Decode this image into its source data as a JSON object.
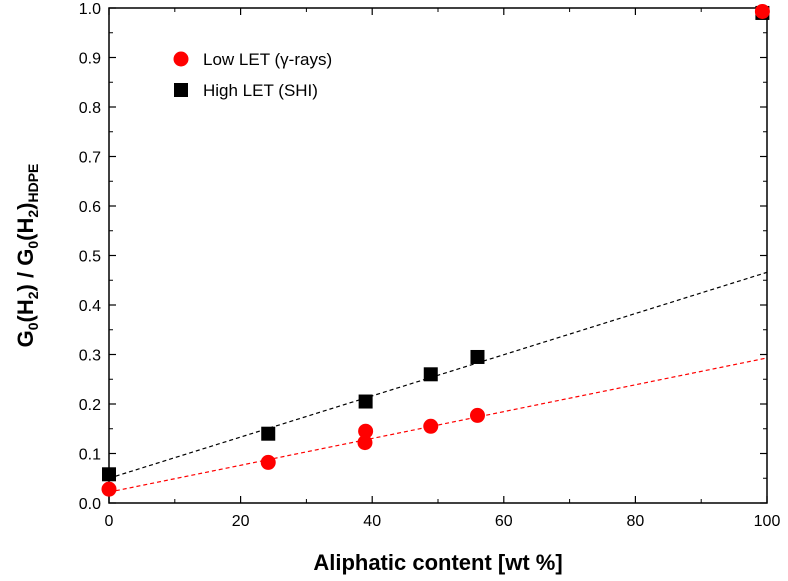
{
  "chart_data": {
    "type": "scatter",
    "xlabel": "Aliphatic content [wt %]",
    "ylabel": {
      "parts": [
        "G",
        "0",
        "(H",
        "2",
        ") / G",
        "0",
        "(H",
        "2",
        ")",
        "HDPE"
      ],
      "sub": [
        false,
        true,
        false,
        true,
        false,
        true,
        false,
        true,
        false,
        true
      ]
    },
    "xlim": [
      0,
      100
    ],
    "ylim": [
      0.0,
      1.0
    ],
    "xticks": [
      "0",
      "20",
      "40",
      "60",
      "80",
      "100"
    ],
    "xtick_values": [
      0,
      20,
      40,
      60,
      80,
      100
    ],
    "yticks": [
      "0.0",
      "0.1",
      "0.2",
      "0.3",
      "0.4",
      "0.5",
      "0.6",
      "0.7",
      "0.8",
      "0.9",
      "1.0"
    ],
    "ytick_values": [
      0.0,
      0.1,
      0.2,
      0.3,
      0.4,
      0.5,
      0.6,
      0.7,
      0.8,
      0.9,
      1.0
    ],
    "grid": false,
    "legend_position": "top-left",
    "series": [
      {
        "name": "Low LET (γ-rays)",
        "marker": "circle",
        "color": "#ff0000",
        "x": [
          0,
          24.2,
          38.9,
          39.0,
          48.9,
          56.0,
          99.3
        ],
        "y": [
          0.028,
          0.082,
          0.122,
          0.145,
          0.155,
          0.177,
          0.993
        ]
      },
      {
        "name": "High LET (SHI)",
        "marker": "square",
        "color": "#000000",
        "x": [
          0,
          24.2,
          39.0,
          48.9,
          56.0,
          99.3
        ],
        "y": [
          0.058,
          0.14,
          0.205,
          0.26,
          0.295,
          0.99
        ]
      }
    ],
    "fit_lines": [
      {
        "series": "Low LET (γ-rays)",
        "color": "#ff0000",
        "style": "dashed",
        "x": [
          0,
          100
        ],
        "y": [
          0.022,
          0.293
        ]
      },
      {
        "series": "High LET (SHI)",
        "color": "#000000",
        "style": "dashed",
        "x": [
          0,
          100
        ],
        "y": [
          0.05,
          0.466
        ]
      }
    ]
  }
}
